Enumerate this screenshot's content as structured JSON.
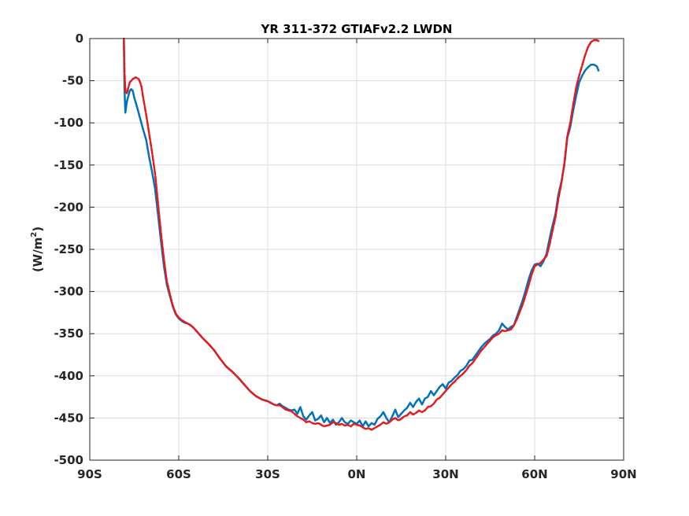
{
  "chart_data": {
    "type": "line",
    "title": "YR 311-372 GTIAFv2.2 LWDN",
    "ylabel_main": "(W/m",
    "ylabel_sup": "2",
    "ylabel_close": ")",
    "xlabel": "",
    "xlim": [
      -90,
      90
    ],
    "ylim": [
      -500,
      0
    ],
    "grid": true,
    "x_ticks": [
      -90,
      -60,
      -30,
      0,
      30,
      60,
      90
    ],
    "x_tick_labels": [
      "90S",
      "60S",
      "30S",
      "0N",
      "30N",
      "60N",
      "90N"
    ],
    "y_ticks": [
      0,
      -50,
      -100,
      -150,
      -200,
      -250,
      -300,
      -350,
      -400,
      -450,
      -500
    ],
    "y_tick_labels": [
      "0",
      "-50",
      "-100",
      "-150",
      "-200",
      "-250",
      "-300",
      "-350",
      "-400",
      "-450",
      "-500"
    ],
    "series": [
      {
        "color": "#0072BD",
        "style": "solid",
        "points": [
          [
            -78.5,
            -2
          ],
          [
            -78.3,
            -60
          ],
          [
            -78,
            -88
          ],
          [
            -77.5,
            -75
          ],
          [
            -77,
            -68
          ],
          [
            -76.5,
            -62
          ],
          [
            -76,
            -60
          ],
          [
            -75.5,
            -62
          ],
          [
            -75,
            -70
          ],
          [
            -74,
            -82
          ],
          [
            -73,
            -95
          ],
          [
            -72,
            -108
          ],
          [
            -71,
            -120
          ],
          [
            -70,
            -140
          ],
          [
            -69,
            -158
          ],
          [
            -68,
            -178
          ],
          [
            -67,
            -208
          ],
          [
            -66,
            -240
          ],
          [
            -65,
            -270
          ],
          [
            -64,
            -292
          ],
          [
            -63,
            -305
          ],
          [
            -62,
            -318
          ],
          [
            -61,
            -327
          ],
          [
            -60,
            -332
          ],
          [
            -59,
            -335
          ],
          [
            -58,
            -337
          ],
          [
            -57,
            -338
          ],
          [
            -56,
            -340
          ],
          [
            -55,
            -343
          ],
          [
            -54,
            -347
          ],
          [
            -53,
            -351
          ],
          [
            -52,
            -355
          ],
          [
            -50,
            -362
          ],
          [
            -48,
            -370
          ],
          [
            -46,
            -380
          ],
          [
            -44,
            -389
          ],
          [
            -42,
            -395
          ],
          [
            -40,
            -402
          ],
          [
            -38,
            -410
          ],
          [
            -36,
            -418
          ],
          [
            -34,
            -424
          ],
          [
            -32,
            -428
          ],
          [
            -30,
            -430
          ],
          [
            -29,
            -432
          ],
          [
            -28,
            -434
          ],
          [
            -27,
            -435
          ],
          [
            -26,
            -433
          ],
          [
            -25,
            -436
          ],
          [
            -24,
            -438
          ],
          [
            -23,
            -440
          ],
          [
            -22,
            -441
          ],
          [
            -21,
            -440
          ],
          [
            -20,
            -445
          ],
          [
            -19,
            -437
          ],
          [
            -18,
            -448
          ],
          [
            -17,
            -452
          ],
          [
            -16,
            -447
          ],
          [
            -15,
            -443
          ],
          [
            -14,
            -453
          ],
          [
            -13,
            -451
          ],
          [
            -12,
            -447
          ],
          [
            -11,
            -455
          ],
          [
            -10,
            -450
          ],
          [
            -9,
            -456
          ],
          [
            -8,
            -452
          ],
          [
            -7,
            -458
          ],
          [
            -6,
            -455
          ],
          [
            -5,
            -450
          ],
          [
            -4,
            -455
          ],
          [
            -3,
            -457
          ],
          [
            -2,
            -453
          ],
          [
            -1,
            -455
          ],
          [
            0,
            -457
          ],
          [
            1,
            -453
          ],
          [
            2,
            -460
          ],
          [
            3,
            -454
          ],
          [
            4,
            -460
          ],
          [
            5,
            -456
          ],
          [
            6,
            -458
          ],
          [
            7,
            -451
          ],
          [
            8,
            -448
          ],
          [
            9,
            -443
          ],
          [
            10,
            -450
          ],
          [
            11,
            -455
          ],
          [
            12,
            -448
          ],
          [
            13,
            -440
          ],
          [
            14,
            -449
          ],
          [
            15,
            -445
          ],
          [
            16,
            -441
          ],
          [
            17,
            -438
          ],
          [
            18,
            -432
          ],
          [
            19,
            -437
          ],
          [
            20,
            -431
          ],
          [
            21,
            -427
          ],
          [
            22,
            -434
          ],
          [
            23,
            -427
          ],
          [
            24,
            -425
          ],
          [
            25,
            -418
          ],
          [
            26,
            -423
          ],
          [
            27,
            -418
          ],
          [
            28,
            -413
          ],
          [
            29,
            -410
          ],
          [
            30,
            -415
          ],
          [
            31,
            -408
          ],
          [
            32,
            -406
          ],
          [
            33,
            -402
          ],
          [
            34,
            -399
          ],
          [
            35,
            -394
          ],
          [
            36,
            -392
          ],
          [
            37,
            -388
          ],
          [
            38,
            -382
          ],
          [
            39,
            -381
          ],
          [
            40,
            -376
          ],
          [
            41,
            -371
          ],
          [
            42,
            -366
          ],
          [
            43,
            -362
          ],
          [
            44,
            -359
          ],
          [
            45,
            -356
          ],
          [
            46,
            -352
          ],
          [
            47,
            -350
          ],
          [
            48,
            -346
          ],
          [
            49,
            -338
          ],
          [
            50,
            -342
          ],
          [
            51,
            -345
          ],
          [
            52,
            -342
          ],
          [
            53,
            -340
          ],
          [
            54,
            -330
          ],
          [
            55,
            -320
          ],
          [
            56,
            -310
          ],
          [
            57,
            -298
          ],
          [
            58,
            -285
          ],
          [
            59,
            -275
          ],
          [
            60,
            -268
          ],
          [
            61,
            -267
          ],
          [
            62,
            -270
          ],
          [
            63,
            -264
          ],
          [
            64,
            -255
          ],
          [
            65,
            -238
          ],
          [
            66,
            -222
          ],
          [
            67,
            -208
          ],
          [
            68,
            -185
          ],
          [
            69,
            -170
          ],
          [
            70,
            -150
          ],
          [
            71,
            -118
          ],
          [
            72,
            -105
          ],
          [
            73,
            -85
          ],
          [
            74,
            -68
          ],
          [
            75,
            -52
          ],
          [
            76,
            -44
          ],
          [
            77,
            -38
          ],
          [
            78,
            -34
          ],
          [
            79,
            -31
          ],
          [
            80,
            -31
          ],
          [
            81,
            -33
          ],
          [
            81.5,
            -38
          ]
        ]
      },
      {
        "color": "#E41A1C",
        "style": "dashed",
        "points": [
          [
            -78.5,
            0
          ],
          [
            -78.3,
            -40
          ],
          [
            -78,
            -62
          ],
          [
            -77.5,
            -65
          ],
          [
            -77,
            -58
          ],
          [
            -76.5,
            -52
          ],
          [
            -76,
            -50
          ],
          [
            -75.5,
            -48
          ],
          [
            -75,
            -47
          ],
          [
            -74.5,
            -46
          ],
          [
            -74,
            -47
          ],
          [
            -73.5,
            -48
          ],
          [
            -73,
            -52
          ],
          [
            -72.5,
            -58
          ],
          [
            -72,
            -70
          ],
          [
            -71,
            -90
          ],
          [
            -70,
            -112
          ],
          [
            -69,
            -135
          ],
          [
            -68,
            -160
          ],
          [
            -67,
            -195
          ],
          [
            -66,
            -230
          ],
          [
            -65,
            -262
          ],
          [
            -64,
            -288
          ],
          [
            -63,
            -303
          ],
          [
            -62,
            -317
          ],
          [
            -61,
            -326
          ],
          [
            -60,
            -331
          ],
          [
            -59,
            -334
          ],
          [
            -58,
            -336
          ],
          [
            -57,
            -338
          ],
          [
            -56,
            -340
          ],
          [
            -55,
            -343
          ],
          [
            -54,
            -347
          ],
          [
            -53,
            -351
          ],
          [
            -52,
            -355
          ],
          [
            -50,
            -362
          ],
          [
            -48,
            -370
          ],
          [
            -46,
            -380
          ],
          [
            -44,
            -389
          ],
          [
            -42,
            -395
          ],
          [
            -40,
            -402
          ],
          [
            -38,
            -410
          ],
          [
            -36,
            -418
          ],
          [
            -34,
            -424
          ],
          [
            -32,
            -428
          ],
          [
            -30,
            -430
          ],
          [
            -29,
            -432
          ],
          [
            -28,
            -434
          ],
          [
            -27,
            -435
          ],
          [
            -26,
            -435
          ],
          [
            -25,
            -437
          ],
          [
            -24,
            -440
          ],
          [
            -23,
            -441
          ],
          [
            -22,
            -442
          ],
          [
            -21,
            -445
          ],
          [
            -20,
            -448
          ],
          [
            -19,
            -450
          ],
          [
            -18,
            -452
          ],
          [
            -17,
            -455
          ],
          [
            -16,
            -454
          ],
          [
            -15,
            -456
          ],
          [
            -14,
            -457
          ],
          [
            -13,
            -456
          ],
          [
            -12,
            -458
          ],
          [
            -11,
            -460
          ],
          [
            -10,
            -459
          ],
          [
            -9,
            -458
          ],
          [
            -8,
            -455
          ],
          [
            -7,
            -456
          ],
          [
            -6,
            -458
          ],
          [
            -5,
            -457
          ],
          [
            -4,
            -459
          ],
          [
            -3,
            -458
          ],
          [
            -2,
            -460
          ],
          [
            -1,
            -457
          ],
          [
            0,
            -458
          ],
          [
            1,
            -459
          ],
          [
            2,
            -461
          ],
          [
            3,
            -463
          ],
          [
            4,
            -462
          ],
          [
            5,
            -464
          ],
          [
            6,
            -462
          ],
          [
            7,
            -460
          ],
          [
            8,
            -458
          ],
          [
            9,
            -455
          ],
          [
            10,
            -457
          ],
          [
            11,
            -455
          ],
          [
            12,
            -452
          ],
          [
            13,
            -450
          ],
          [
            14,
            -453
          ],
          [
            15,
            -451
          ],
          [
            16,
            -448
          ],
          [
            17,
            -447
          ],
          [
            18,
            -443
          ],
          [
            19,
            -446
          ],
          [
            20,
            -444
          ],
          [
            21,
            -441
          ],
          [
            22,
            -443
          ],
          [
            23,
            -441
          ],
          [
            24,
            -437
          ],
          [
            25,
            -436
          ],
          [
            26,
            -433
          ],
          [
            27,
            -428
          ],
          [
            28,
            -426
          ],
          [
            29,
            -422
          ],
          [
            30,
            -418
          ],
          [
            31,
            -414
          ],
          [
            32,
            -410
          ],
          [
            33,
            -407
          ],
          [
            34,
            -403
          ],
          [
            35,
            -400
          ],
          [
            36,
            -397
          ],
          [
            37,
            -393
          ],
          [
            38,
            -388
          ],
          [
            39,
            -385
          ],
          [
            40,
            -380
          ],
          [
            41,
            -375
          ],
          [
            42,
            -370
          ],
          [
            43,
            -366
          ],
          [
            44,
            -362
          ],
          [
            45,
            -358
          ],
          [
            46,
            -354
          ],
          [
            47,
            -352
          ],
          [
            48,
            -350
          ],
          [
            49,
            -346
          ],
          [
            50,
            -347
          ],
          [
            51,
            -346
          ],
          [
            52,
            -345
          ],
          [
            53,
            -340
          ],
          [
            54,
            -333
          ],
          [
            55,
            -324
          ],
          [
            56,
            -315
          ],
          [
            57,
            -304
          ],
          [
            58,
            -292
          ],
          [
            59,
            -280
          ],
          [
            60,
            -270
          ],
          [
            61,
            -268
          ],
          [
            62,
            -266
          ],
          [
            63,
            -262
          ],
          [
            64,
            -258
          ],
          [
            65,
            -245
          ],
          [
            66,
            -228
          ],
          [
            67,
            -212
          ],
          [
            68,
            -190
          ],
          [
            69,
            -172
          ],
          [
            70,
            -148
          ],
          [
            71,
            -116
          ],
          [
            72,
            -100
          ],
          [
            73,
            -78
          ],
          [
            74,
            -58
          ],
          [
            75,
            -44
          ],
          [
            76,
            -32
          ],
          [
            77,
            -20
          ],
          [
            78,
            -10
          ],
          [
            79,
            -4
          ],
          [
            80,
            -2
          ],
          [
            81,
            -2
          ],
          [
            81.5,
            -3
          ]
        ]
      }
    ]
  }
}
